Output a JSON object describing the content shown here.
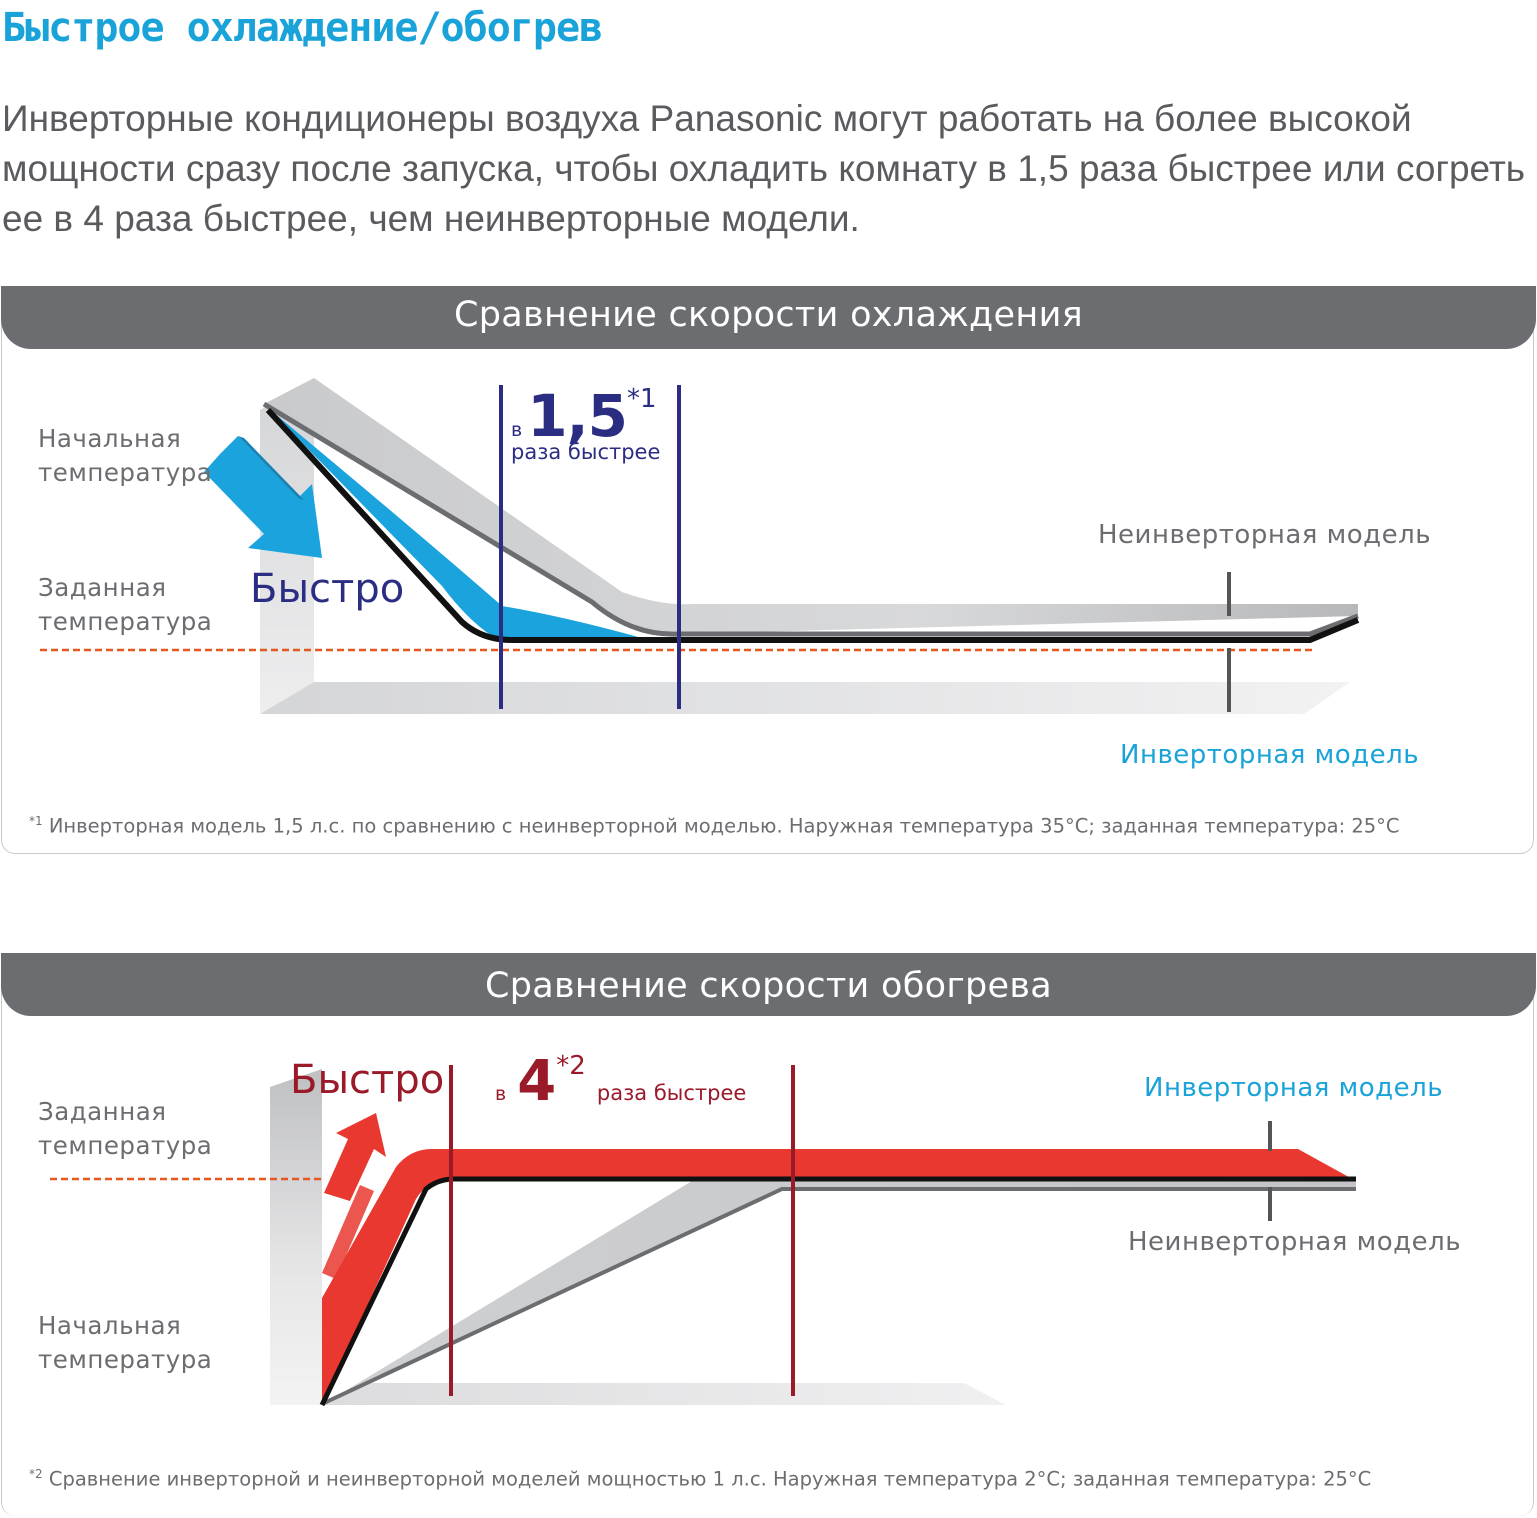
{
  "title": "Быстрое охлаждение/обогрев",
  "intro": "Инверторные кондиционеры воздуха Panasonic  могут работать на более высокой мощности сразу после запуска, чтобы охладить комнату в 1,5 раза быстрее или согреть ее в 4 раза быстрее, чем неинверторные модели.",
  "colors": {
    "title_blue": "#1aa3d9",
    "header_gray": "#6b6d71",
    "cool_blue": "#1aa3dd",
    "speed_navy": "#2b2d83",
    "heat_red": "#e8382f",
    "speed_maroon": "#9a1a2a",
    "set_temp_dash": "#e4571f"
  },
  "cooling": {
    "header": "Сравнение скорости охлаждения",
    "start_temp": "Начальная температура",
    "set_temp": "Заданная температура",
    "fast": "Быстро",
    "speed_prefix": "в",
    "speed_value": "1,5",
    "speed_mark": "*1",
    "speed_suffix": "раза быстрее",
    "non_inverter": "Неинверторная модель",
    "inverter": "Инверторная модель",
    "footnote_mark": "*1",
    "footnote": " Инверторная модель 1,5 л.с. по сравнению с неинверторной моделью. Наружная температура 35°C; заданная температура: 25°C"
  },
  "heating": {
    "header": "Сравнение скорости обогрева",
    "set_temp": "Заданная температура",
    "start_temp": "Начальная температура",
    "fast": "Быстро",
    "speed_prefix": "в",
    "speed_value": "4",
    "speed_mark": "*2",
    "speed_suffix": "раза быстрее",
    "inverter": "Инверторная модель",
    "non_inverter": "Неинверторная модель",
    "footnote_mark": "*2",
    "footnote": " Сравнение инверторной и неинверторной моделей мощностью 1 л.с. Наружная температура 2°C; заданная температура: 25°C"
  }
}
